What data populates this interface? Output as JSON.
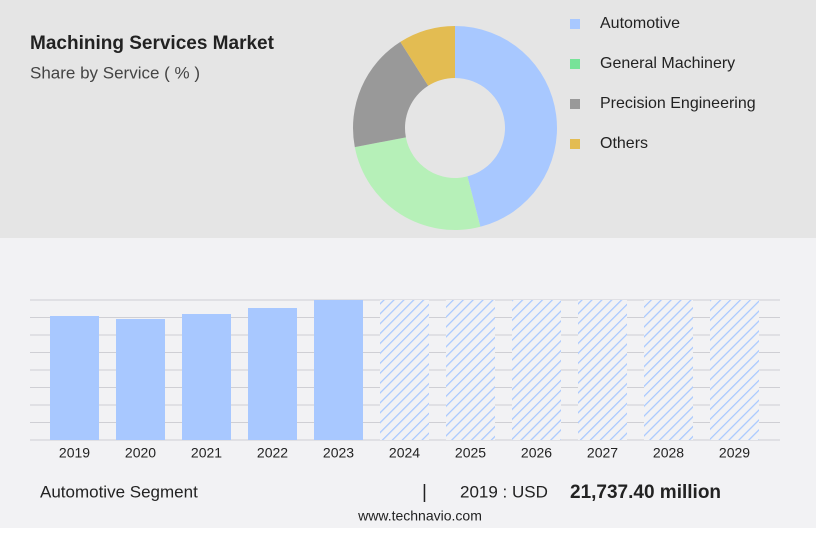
{
  "chart_data": [
    {
      "type": "donut",
      "title": "Machining Services Market",
      "subtitle": "Share by Service ( % )",
      "categories": [
        "Automotive",
        "General Machinery",
        "Precision Engineering",
        "Others"
      ],
      "values": [
        46,
        26,
        19,
        9
      ],
      "colors": [
        "#a8c8ff",
        "#b6f0b8",
        "#999999",
        "#e3bc52"
      ],
      "legend_colors": [
        "#a8c8ff",
        "#77e398",
        "#999999",
        "#e3bc52"
      ]
    },
    {
      "type": "bar",
      "categories": [
        "2019",
        "2020",
        "2021",
        "2022",
        "2023",
        "2024",
        "2025",
        "2026",
        "2027",
        "2028",
        "2029"
      ],
      "values": [
        21737.4,
        21211,
        22088,
        23140,
        24543,
        null,
        null,
        null,
        null,
        null,
        null
      ],
      "color": "#a8c8ff",
      "ylim": [
        0,
        24543
      ],
      "grid": true
    }
  ],
  "footer": {
    "segment": "Automotive Segment",
    "separator": "|",
    "year_label": "2019 : USD",
    "value": "21,737.40 million"
  },
  "website": "www.technavio.com"
}
